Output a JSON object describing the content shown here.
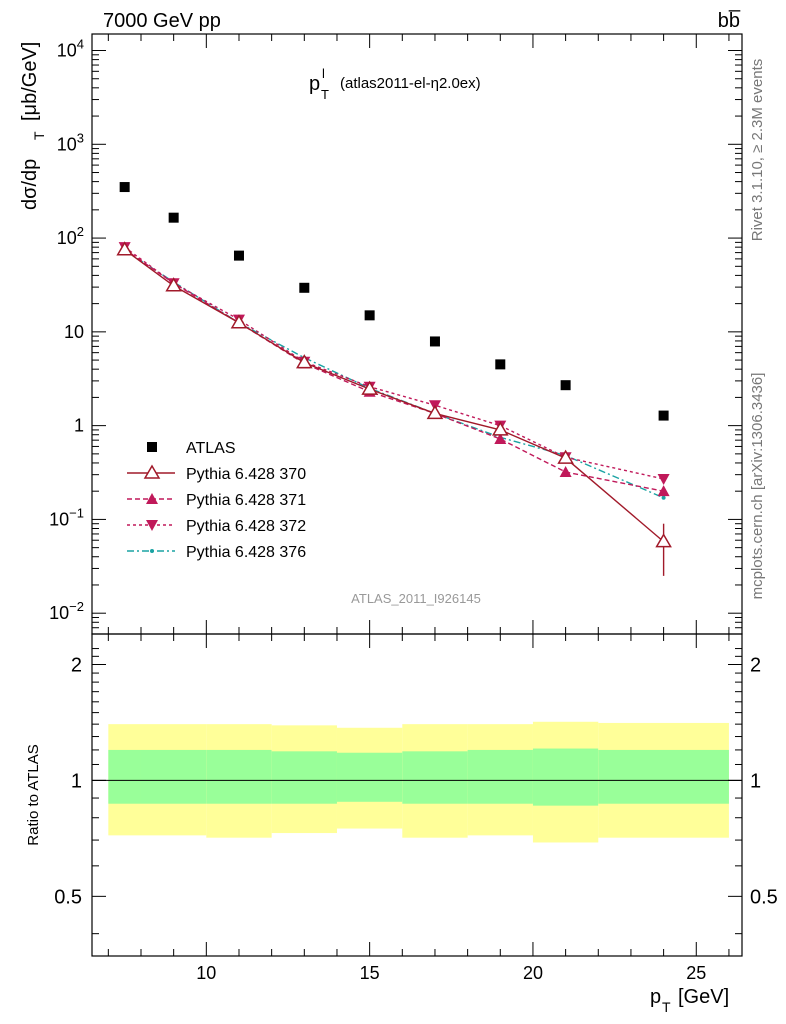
{
  "header": {
    "left_title": "7000 GeV pp",
    "right_title": "bb̅"
  },
  "side_labels": {
    "rivet": "Rivet 3.1.10, ≥ 2.3M events",
    "mcplots": "mcplots.cern.ch [arXiv:1306.3436]"
  },
  "plot_title": {
    "main": "p",
    "sup": "l",
    "sub": "T",
    "rest": "(atlas2011-el-η2.0ex)"
  },
  "watermark": "ATLAS_2011_I926145",
  "ylabel": {
    "main": "dσ/dp",
    "sub": "T",
    "unit": "[μb/GeV]"
  },
  "ratio_ylabel": "Ratio to ATLAS",
  "xlabel": {
    "main": "p",
    "sub": "T",
    "unit": "[GeV]"
  },
  "colors": {
    "atlas": "#000000",
    "p370": "#a11a2a",
    "p371": "#c0195a",
    "p372": "#c0195a",
    "p376": "#1aa3a3",
    "band_inner": "#99ff99",
    "band_outer": "#ffff99"
  },
  "chart_data": [
    {
      "type": "scatter",
      "xlabel": "p_T [GeV]",
      "ylabel": "dσ/dp_T [μb/GeV]",
      "yscale": "log",
      "xlim": [
        6.5,
        26.4
      ],
      "ylim": [
        0.006,
        15000
      ],
      "x_ticks": [
        10,
        15,
        20,
        25
      ],
      "y_ticks": [
        "10^-2",
        "10^-1",
        "1",
        "10",
        "10^2",
        "10^3",
        "10^4"
      ],
      "legend_position": "lower-left",
      "series": [
        {
          "name": "ATLAS",
          "x": [
            7.5,
            9,
            11,
            13,
            15,
            17,
            19,
            21,
            24
          ],
          "y": [
            350,
            165,
            65,
            29.5,
            15,
            7.9,
            4.5,
            2.7,
            1.28
          ]
        },
        {
          "name": "Pythia 6.428 370",
          "x": [
            7.5,
            9,
            11,
            13,
            15,
            17,
            19,
            21,
            24
          ],
          "y": [
            75,
            31,
            12.5,
            4.7,
            2.45,
            1.35,
            0.9,
            0.45,
            0.058
          ],
          "yerr_low": [
            0,
            0,
            0,
            0,
            0,
            0,
            0,
            0,
            0.033
          ],
          "yerr_high": [
            0,
            0,
            0,
            0,
            0,
            0,
            0,
            0,
            0.032
          ]
        },
        {
          "name": "Pythia 6.428 371",
          "x": [
            7.5,
            9,
            11,
            13,
            15,
            17,
            19,
            21,
            24
          ],
          "y": [
            76,
            33,
            12.5,
            4.6,
            2.3,
            1.35,
            0.72,
            0.32,
            0.2
          ]
        },
        {
          "name": "Pythia 6.428 372",
          "x": [
            7.5,
            9,
            11,
            13,
            15,
            17,
            19,
            21,
            24
          ],
          "y": [
            80,
            33,
            13.5,
            4.8,
            2.6,
            1.65,
            1.0,
            0.46,
            0.27
          ]
        },
        {
          "name": "Pythia 6.428 376",
          "x": [
            7.5,
            9,
            11,
            13,
            15,
            17,
            19,
            21,
            24
          ],
          "y": [
            74,
            34,
            12.5,
            5.3,
            2.5,
            1.35,
            0.75,
            0.48,
            0.17
          ]
        }
      ]
    },
    {
      "type": "area",
      "ylabel": "Ratio to ATLAS",
      "xlim": [
        6.5,
        26.4
      ],
      "ylim": [
        0.35,
        2.4
      ],
      "y_ticks": [
        "0.5",
        "1",
        "2"
      ],
      "reference_line": 1,
      "bands": {
        "x_edges": [
          7,
          8,
          10,
          12,
          14,
          16,
          18,
          20,
          22,
          26
        ],
        "inner_low": [
          0.87,
          0.87,
          0.87,
          0.87,
          0.88,
          0.87,
          0.87,
          0.86,
          0.87
        ],
        "inner_high": [
          1.2,
          1.2,
          1.2,
          1.19,
          1.18,
          1.19,
          1.2,
          1.21,
          1.2
        ],
        "outer_low": [
          0.72,
          0.72,
          0.71,
          0.73,
          0.75,
          0.71,
          0.72,
          0.69,
          0.71
        ],
        "outer_high": [
          1.4,
          1.4,
          1.4,
          1.39,
          1.37,
          1.4,
          1.4,
          1.42,
          1.41
        ]
      }
    }
  ]
}
